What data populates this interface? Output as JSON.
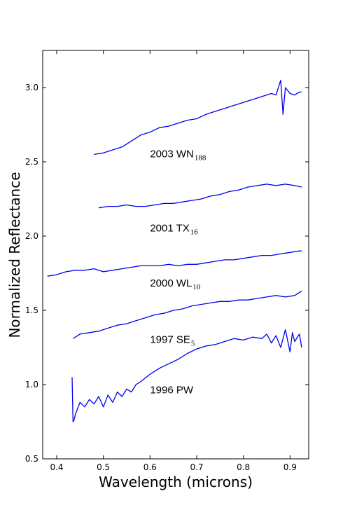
{
  "chart_data": {
    "type": "line",
    "title": "",
    "xlabel": "Wavelength (microns)",
    "ylabel": "Normalized Reflectance",
    "xlim": [
      0.37,
      0.94
    ],
    "ylim": [
      0.5,
      3.25
    ],
    "xticks": [
      0.4,
      0.5,
      0.6,
      0.7,
      0.8,
      0.9
    ],
    "yticks": [
      0.5,
      1.0,
      1.5,
      2.0,
      2.5,
      3.0
    ],
    "xtick_labels": [
      "0.4",
      "0.5",
      "0.6",
      "0.7",
      "0.8",
      "0.9"
    ],
    "ytick_labels": [
      "0.5",
      "1.0",
      "1.5",
      "2.0",
      "2.5",
      "3.0"
    ],
    "line_color": "#0000ee",
    "grid": false,
    "legend": "none",
    "series": [
      {
        "name": "2003 WN188",
        "label_main": "2003 WN",
        "label_sub": "188",
        "label_at": [
          0.6,
          2.53
        ],
        "x": [
          0.48,
          0.5,
          0.52,
          0.54,
          0.56,
          0.58,
          0.6,
          0.62,
          0.64,
          0.66,
          0.68,
          0.7,
          0.72,
          0.74,
          0.76,
          0.78,
          0.8,
          0.82,
          0.84,
          0.86,
          0.87,
          0.88,
          0.885,
          0.89,
          0.9,
          0.91,
          0.92,
          0.925
        ],
        "y": [
          2.55,
          2.56,
          2.58,
          2.6,
          2.64,
          2.68,
          2.7,
          2.73,
          2.74,
          2.76,
          2.78,
          2.79,
          2.82,
          2.84,
          2.86,
          2.88,
          2.9,
          2.92,
          2.94,
          2.96,
          2.95,
          3.05,
          2.82,
          3.0,
          2.96,
          2.95,
          2.97,
          2.97
        ]
      },
      {
        "name": "2001 TX16",
        "label_main": "2001 TX",
        "label_sub": "16",
        "label_at": [
          0.6,
          2.03
        ],
        "x": [
          0.49,
          0.51,
          0.53,
          0.55,
          0.57,
          0.59,
          0.61,
          0.63,
          0.65,
          0.67,
          0.69,
          0.71,
          0.73,
          0.75,
          0.77,
          0.79,
          0.81,
          0.83,
          0.85,
          0.87,
          0.89,
          0.91,
          0.925
        ],
        "y": [
          2.19,
          2.2,
          2.2,
          2.21,
          2.2,
          2.2,
          2.21,
          2.22,
          2.22,
          2.23,
          2.24,
          2.25,
          2.27,
          2.28,
          2.3,
          2.31,
          2.33,
          2.34,
          2.35,
          2.34,
          2.35,
          2.34,
          2.33
        ]
      },
      {
        "name": "2000 WL10",
        "label_main": "2000 WL",
        "label_sub": "10",
        "label_at": [
          0.6,
          1.66
        ],
        "x": [
          0.38,
          0.4,
          0.42,
          0.44,
          0.46,
          0.48,
          0.5,
          0.52,
          0.54,
          0.56,
          0.58,
          0.6,
          0.62,
          0.64,
          0.66,
          0.68,
          0.7,
          0.72,
          0.74,
          0.76,
          0.78,
          0.8,
          0.82,
          0.84,
          0.86,
          0.88,
          0.9,
          0.92,
          0.925
        ],
        "y": [
          1.73,
          1.74,
          1.76,
          1.77,
          1.77,
          1.78,
          1.76,
          1.77,
          1.78,
          1.79,
          1.8,
          1.8,
          1.8,
          1.81,
          1.8,
          1.81,
          1.81,
          1.82,
          1.83,
          1.84,
          1.84,
          1.85,
          1.86,
          1.87,
          1.87,
          1.88,
          1.89,
          1.9,
          1.9
        ]
      },
      {
        "name": "1997 SE5",
        "label_main": "1997 SE",
        "label_sub": "5",
        "label_at": [
          0.6,
          1.28
        ],
        "x": [
          0.435,
          0.45,
          0.47,
          0.49,
          0.51,
          0.53,
          0.55,
          0.57,
          0.59,
          0.61,
          0.63,
          0.65,
          0.67,
          0.69,
          0.71,
          0.73,
          0.75,
          0.77,
          0.79,
          0.81,
          0.83,
          0.85,
          0.87,
          0.89,
          0.91,
          0.925
        ],
        "y": [
          1.31,
          1.34,
          1.35,
          1.36,
          1.38,
          1.4,
          1.41,
          1.43,
          1.45,
          1.47,
          1.48,
          1.5,
          1.51,
          1.53,
          1.54,
          1.55,
          1.56,
          1.56,
          1.57,
          1.57,
          1.58,
          1.59,
          1.6,
          1.59,
          1.6,
          1.63
        ]
      },
      {
        "name": "1996 PW",
        "label_main": "1996 PW",
        "label_sub": "",
        "label_at": [
          0.6,
          0.94
        ],
        "x": [
          0.433,
          0.435,
          0.437,
          0.44,
          0.45,
          0.46,
          0.47,
          0.48,
          0.49,
          0.5,
          0.51,
          0.52,
          0.53,
          0.54,
          0.55,
          0.56,
          0.57,
          0.58,
          0.6,
          0.62,
          0.64,
          0.66,
          0.68,
          0.7,
          0.72,
          0.74,
          0.76,
          0.78,
          0.8,
          0.82,
          0.84,
          0.85,
          0.86,
          0.87,
          0.88,
          0.89,
          0.9,
          0.905,
          0.91,
          0.92,
          0.925
        ],
        "y": [
          1.05,
          0.75,
          0.76,
          0.8,
          0.88,
          0.85,
          0.9,
          0.87,
          0.92,
          0.85,
          0.93,
          0.88,
          0.95,
          0.92,
          0.97,
          0.95,
          1.0,
          1.02,
          1.07,
          1.11,
          1.14,
          1.17,
          1.21,
          1.24,
          1.26,
          1.27,
          1.29,
          1.31,
          1.3,
          1.32,
          1.31,
          1.34,
          1.28,
          1.33,
          1.25,
          1.37,
          1.22,
          1.35,
          1.29,
          1.34,
          1.25
        ]
      }
    ]
  }
}
